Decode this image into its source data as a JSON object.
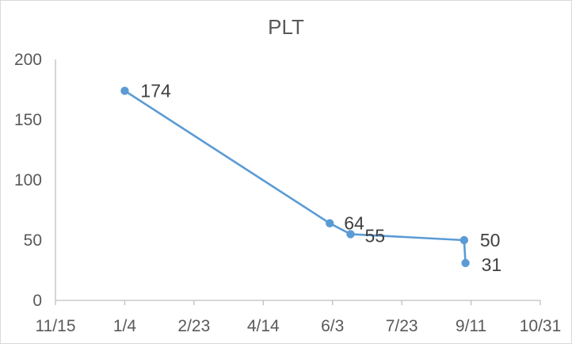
{
  "chart_data": {
    "type": "line",
    "title": "PLT",
    "xlabel": "",
    "ylabel": "",
    "x_axis_type": "date",
    "x_ticks": [
      "11/15",
      "1/4",
      "2/23",
      "4/14",
      "6/3",
      "7/23",
      "9/11",
      "10/31"
    ],
    "xlim": [
      "11/15",
      "10/31"
    ],
    "ylim": [
      0,
      200
    ],
    "y_ticks": [
      0,
      50,
      100,
      150,
      200
    ],
    "grid": false,
    "legend": "none",
    "series": [
      {
        "color": "#5b9bd5",
        "points": [
          {
            "x": "1/4",
            "y": 174
          },
          {
            "x": "6/1",
            "y": 64
          },
          {
            "x": "6/16",
            "y": 55
          },
          {
            "x": "9/6",
            "y": 50
          },
          {
            "x": "9/7",
            "y": 31
          }
        ],
        "data_labels": [
          "174",
          "64",
          "55",
          "50",
          "31"
        ]
      }
    ]
  }
}
